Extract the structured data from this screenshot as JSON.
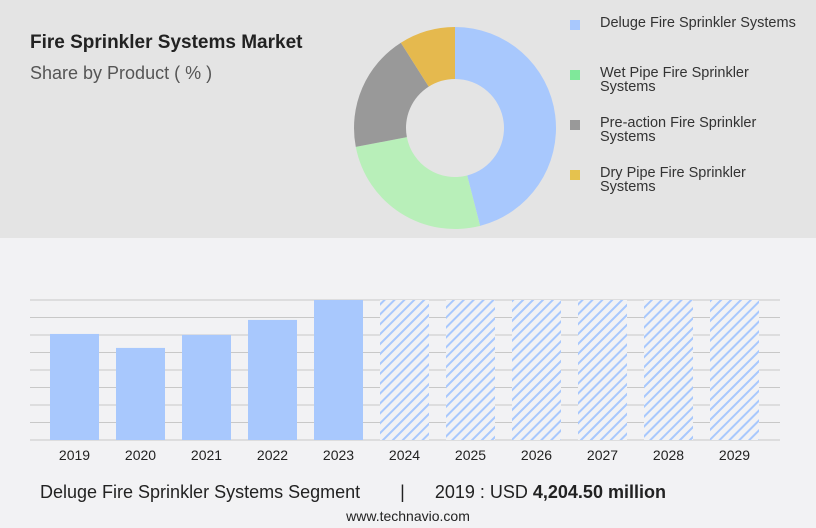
{
  "header": {
    "title": "Fire Sprinkler Systems Market",
    "subtitle": "Share by Product ( % )"
  },
  "chart_data": [
    {
      "type": "pie",
      "donut": true,
      "legend_position": "right",
      "categories": [
        "Deluge Fire Sprinkler Systems",
        "Wet Pipe Fire Sprinkler Systems",
        "Pre-action Fire Sprinkler Systems",
        "Dry Pipe Fire Sprinkler Systems"
      ],
      "values": [
        46,
        26,
        19,
        9
      ],
      "colors": [
        "#a8c8fd",
        "#b8efb9",
        "#999999",
        "#e5b94e"
      ],
      "legend_colors": [
        "#a8c8fd",
        "#7fe89a",
        "#999999",
        "#e5c24e"
      ]
    },
    {
      "type": "bar",
      "categories": [
        "2019",
        "2020",
        "2021",
        "2022",
        "2023",
        "2024",
        "2025",
        "2026",
        "2027",
        "2028",
        "2029"
      ],
      "values": [
        4204.5,
        3650,
        4165,
        4760,
        5550,
        null,
        null,
        null,
        null,
        null,
        null
      ],
      "forecast": [
        "2024",
        "2025",
        "2026",
        "2027",
        "2028",
        "2029"
      ],
      "color": "#a8c8fd",
      "grid": true
    }
  ],
  "footer": {
    "segment": "Deluge Fire Sprinkler Systems Segment",
    "separator": "|",
    "year_label": "2019 : USD",
    "value": "4,204.50 million",
    "site": "www.technavio.com"
  }
}
